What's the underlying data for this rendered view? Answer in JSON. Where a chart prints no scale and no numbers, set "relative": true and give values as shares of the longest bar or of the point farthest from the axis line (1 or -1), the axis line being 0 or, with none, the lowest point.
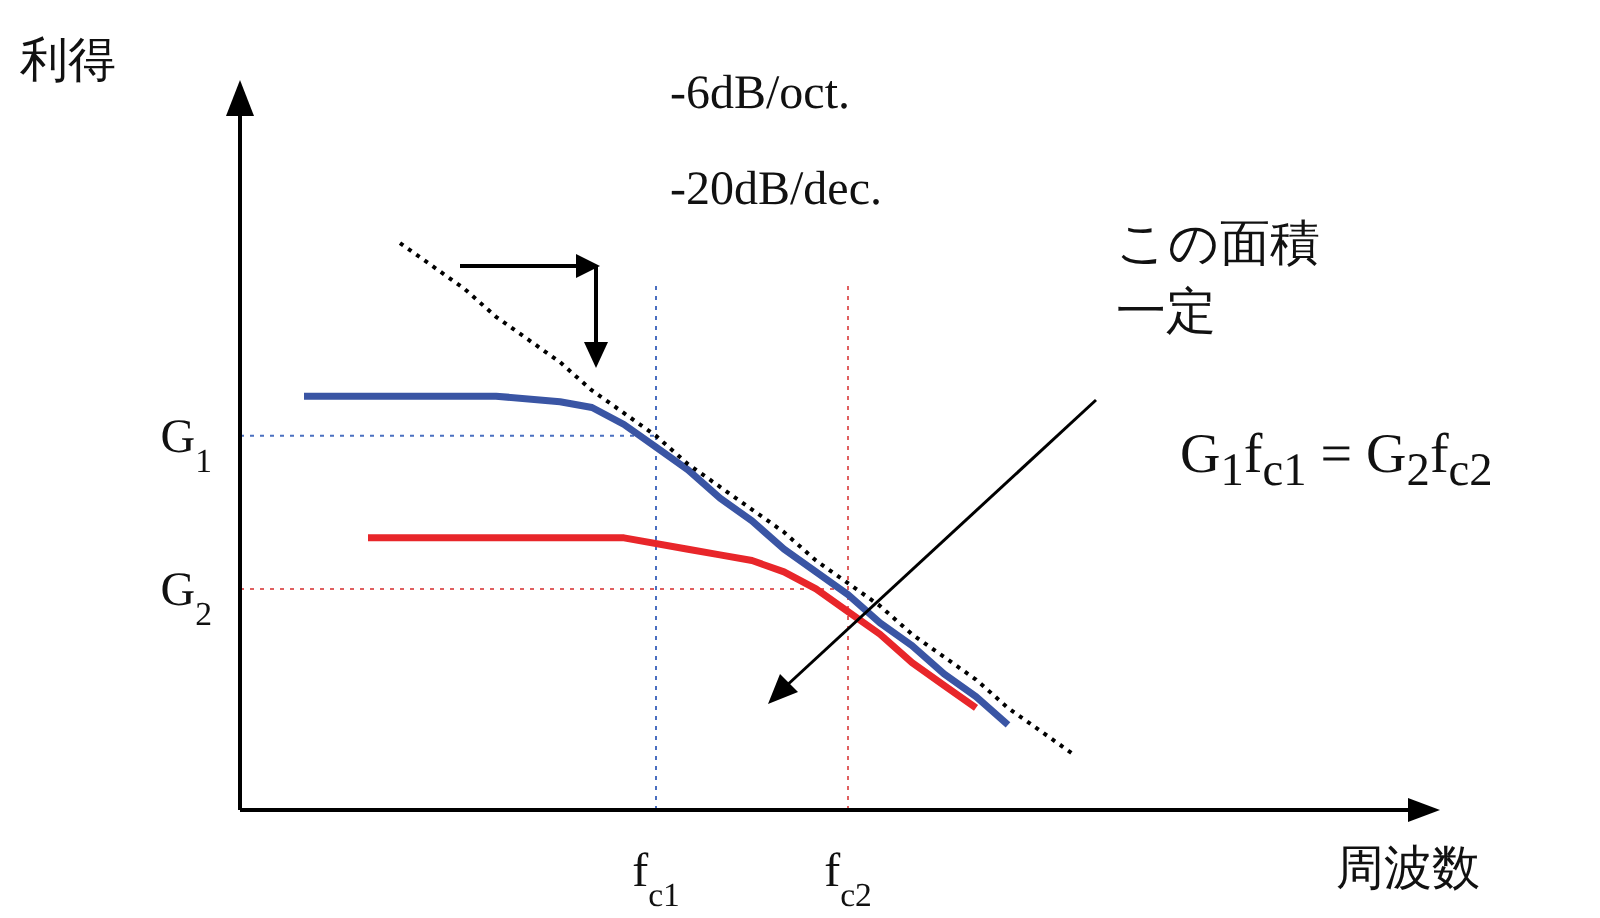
{
  "chart_data": {
    "type": "line",
    "relative": true,
    "ylabel": "利得",
    "xlabel": "周波数",
    "marker": "none",
    "categories": [
      null,
      null,
      null,
      null,
      null,
      null,
      null,
      null,
      null,
      null,
      null,
      null,
      null,
      "f$_{c1}$",
      null,
      null,
      null,
      null,
      null,
      "f$_{c2}$",
      null,
      null,
      null,
      null,
      null,
      null,
      null,
      null,
      null,
      null,
      null,
      null,
      null,
      null,
      null,
      null,
      null,
      null
    ],
    "series": [
      {
        "color": "#3a55a4",
        "line_style": "solid",
        "values": [
          null,
          null,
          0.73,
          null,
          0.73,
          null,
          0.73,
          null,
          0.73,
          null,
          0.72,
          0.71,
          0.68,
          0.64,
          0.6,
          0.55,
          0.51,
          0.46,
          0.42,
          0.38,
          0.33,
          0.29,
          0.24,
          0.2,
          0.15,
          null,
          null,
          null,
          null,
          null,
          null,
          null,
          null,
          null,
          null,
          null,
          null,
          null
        ]
      },
      {
        "color": "#e8262a",
        "line_style": "solid",
        "values": [
          null,
          null,
          null,
          null,
          0.48,
          null,
          0.48,
          null,
          0.48,
          null,
          0.48,
          null,
          0.48,
          null,
          0.46,
          0.45,
          0.44,
          0.42,
          0.39,
          0.35,
          0.31,
          0.26,
          0.22,
          0.18,
          null,
          null,
          null,
          null,
          null,
          null,
          null,
          null,
          null,
          null,
          null,
          null,
          null,
          null
        ]
      },
      {
        "color": "#000000",
        "line_style": "dotted",
        "values": [
          null,
          null,
          null,
          null,
          null,
          1.0,
          0.96,
          0.92,
          0.87,
          0.83,
          0.79,
          0.74,
          0.7,
          0.66,
          0.61,
          0.57,
          0.53,
          0.49,
          0.44,
          0.4,
          0.36,
          0.31,
          0.27,
          0.23,
          0.18,
          0.14,
          0.1,
          null,
          null,
          null,
          null,
          null,
          null,
          null,
          null,
          null,
          null,
          null
        ]
      }
    ],
    "ref_lines": [
      {
        "axis": "y",
        "value": 0.66,
        "label": "G$_{1}$",
        "color": "#4a6fc0",
        "line_style": "dotted"
      },
      {
        "axis": "y",
        "value": 0.39,
        "label": "G$_{2}$",
        "color": "#e06060",
        "line_style": "dotted"
      },
      {
        "axis": "x",
        "value": "f$_{c1}$",
        "color": "#4a6fc0",
        "line_style": "dotted"
      },
      {
        "axis": "x",
        "value": "f$_{c2}$",
        "color": "#e06060",
        "line_style": "dotted"
      }
    ],
    "annotations": [
      "-6dB/oct.",
      "-20dB/dec.",
      "この面積",
      "一定",
      "G$_{1}$f$_{c1}$ = G$_{2}$f$_{c2}$"
    ]
  }
}
